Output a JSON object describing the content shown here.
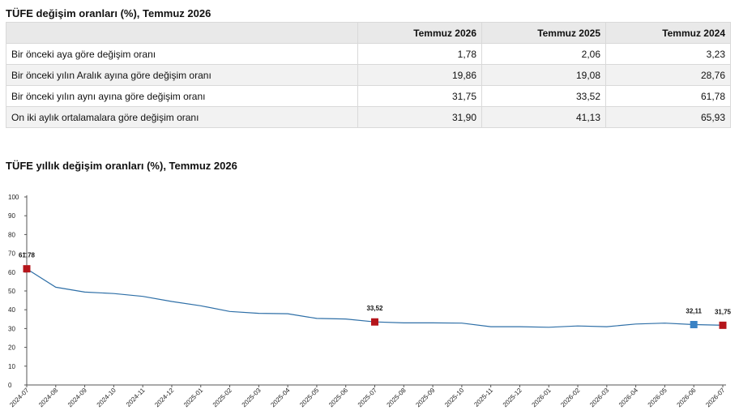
{
  "table_title": "TÜFE değişim oranları (%), Temmuz 2026",
  "table": {
    "headers": [
      "",
      "Temmuz 2026",
      "Temmuz 2025",
      "Temmuz 2024"
    ],
    "rows": [
      {
        "label": "Bir önceki aya göre değişim oranı",
        "values": [
          "1,78",
          "2,06",
          "3,23"
        ]
      },
      {
        "label": "Bir önceki yılın Aralık ayına göre değişim oranı",
        "values": [
          "19,86",
          "19,08",
          "28,76"
        ]
      },
      {
        "label": "Bir önceki yılın aynı ayına göre değişim oranı",
        "values": [
          "31,75",
          "33,52",
          "61,78"
        ]
      },
      {
        "label": "On iki aylık ortalamalara göre değişim oranı",
        "values": [
          "31,90",
          "41,13",
          "65,93"
        ]
      }
    ]
  },
  "chart_data": {
    "type": "line",
    "title": "TÜFE yıllık değişim oranları (%), Temmuz 2026",
    "xlabel": "",
    "ylabel": "",
    "ylim": [
      0,
      100
    ],
    "yticks": [
      0,
      10,
      20,
      30,
      40,
      50,
      60,
      70,
      80,
      90,
      100
    ],
    "grid": false,
    "line_color": "#2e6fa7",
    "categories": [
      "2024-07",
      "2024-08",
      "2024-09",
      "2024-10",
      "2024-11",
      "2024-12",
      "2025-01",
      "2025-02",
      "2025-03",
      "2025-04",
      "2025-05",
      "2025-06",
      "2025-07",
      "2025-08",
      "2025-09",
      "2025-10",
      "2025-11",
      "2025-12",
      "2026-01",
      "2026-02",
      "2026-03",
      "2026-04",
      "2026-05",
      "2026-06",
      "2026-07"
    ],
    "series": [
      {
        "values": [
          61.78,
          52.0,
          49.4,
          48.6,
          47.1,
          44.4,
          42.1,
          39.1,
          38.1,
          37.9,
          35.4,
          35.1,
          33.52,
          33.0,
          33.0,
          32.9,
          31.0,
          31.0,
          30.7,
          31.4,
          31.0,
          32.4,
          32.9,
          32.11,
          31.75
        ]
      }
    ],
    "highlighted_points": [
      {
        "category": "2024-07",
        "value": 61.78,
        "label": "61,78",
        "color": "#b5151b"
      },
      {
        "category": "2025-07",
        "value": 33.52,
        "label": "33,52",
        "color": "#b5151b"
      },
      {
        "category": "2026-06",
        "value": 32.11,
        "label": "32,11",
        "color": "#3a82c4"
      },
      {
        "category": "2026-07",
        "value": 31.75,
        "label": "31,75",
        "color": "#b5151b"
      }
    ]
  }
}
